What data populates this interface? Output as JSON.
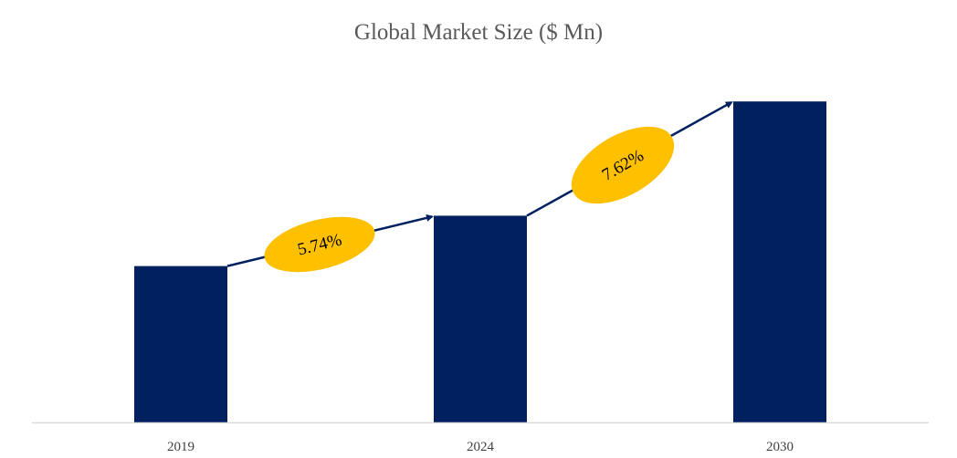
{
  "chart_data": {
    "type": "bar",
    "title": "Global Market Size ($ Mn)",
    "xlabel": "",
    "ylabel": "",
    "categories": [
      "2019",
      "2024",
      "2030"
    ],
    "values": [
      100,
      132.2,
      205.3
    ],
    "ylim": [
      0,
      220
    ],
    "grid": false,
    "legend": "none",
    "annotations": [
      {
        "from": "2019",
        "to": "2024",
        "label": "5.74%"
      },
      {
        "from": "2024",
        "to": "2030",
        "label": "7.62%"
      }
    ],
    "colors": {
      "bar": "#002060",
      "annotation_fill": "#FFC000",
      "arrow": "#002060",
      "axis": "#D9D9D9"
    }
  }
}
